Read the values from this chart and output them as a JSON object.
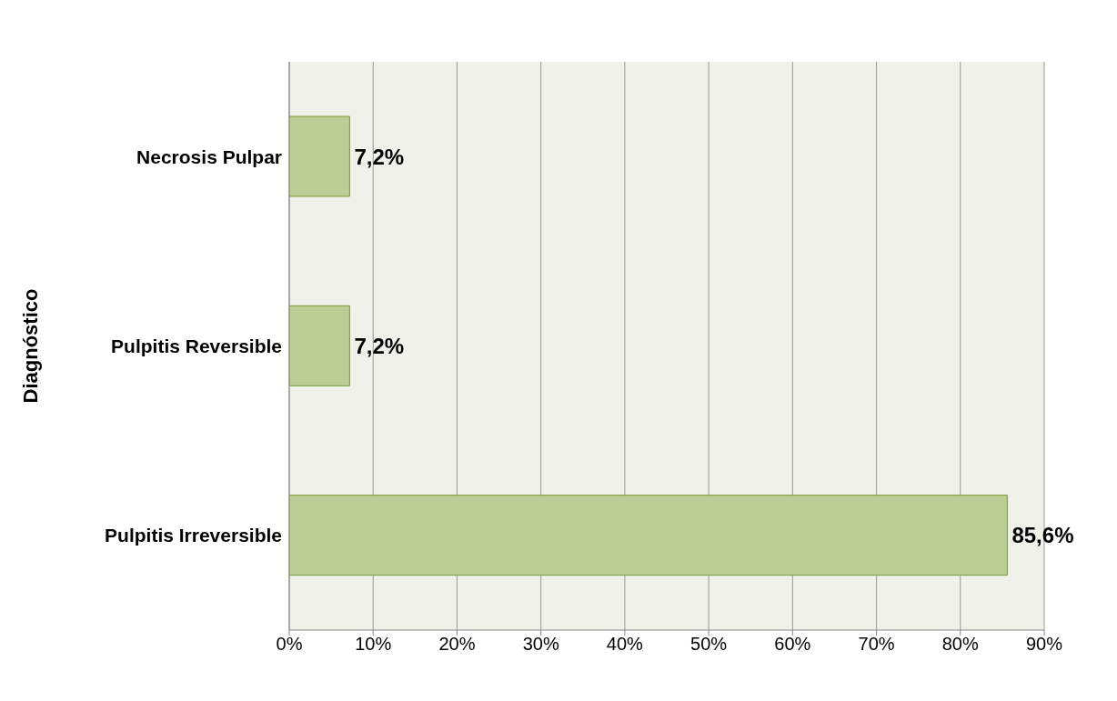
{
  "chart_data": {
    "type": "bar",
    "orientation": "horizontal",
    "ylabel": "Diagnóstico",
    "categories": [
      "Necrosis Pulpar",
      "Pulpitis Reversible",
      "Pulpitis Irreversible"
    ],
    "values": [
      7.2,
      7.2,
      85.6
    ],
    "color": "#bcce96",
    "value_labels": [
      "7,2%",
      "7,2%",
      "85,6%"
    ],
    "xlim": [
      0,
      90
    ],
    "xticks": [
      {
        "value": 0,
        "label": "0%"
      },
      {
        "value": 10,
        "label": "10%"
      },
      {
        "value": 20,
        "label": "20%"
      },
      {
        "value": 30,
        "label": "30%"
      },
      {
        "value": 40,
        "label": "40%"
      },
      {
        "value": 50,
        "label": "50%"
      },
      {
        "value": 60,
        "label": "60%"
      },
      {
        "value": 70,
        "label": "70%"
      },
      {
        "value": 80,
        "label": "80%"
      },
      {
        "value": 90,
        "label": "90%"
      }
    ],
    "grid": "x"
  }
}
